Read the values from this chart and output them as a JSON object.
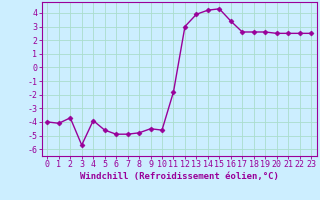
{
  "x": [
    0,
    1,
    2,
    3,
    4,
    5,
    6,
    7,
    8,
    9,
    10,
    11,
    12,
    13,
    14,
    15,
    16,
    17,
    18,
    19,
    20,
    21,
    22,
    23
  ],
  "y": [
    -4.0,
    -4.1,
    -3.7,
    -5.7,
    -3.9,
    -4.6,
    -4.9,
    -4.9,
    -4.8,
    -4.5,
    -4.6,
    -1.8,
    3.0,
    3.9,
    4.2,
    4.3,
    3.4,
    2.6,
    2.6,
    2.6,
    2.5,
    2.5,
    2.5,
    2.5
  ],
  "line_color": "#990099",
  "marker": "D",
  "markersize": 2.5,
  "linewidth": 1.0,
  "background_color": "#cceeff",
  "grid_color": "#aaddcc",
  "xlabel": "Windchill (Refroidissement éolien,°C)",
  "xlabel_fontsize": 6.5,
  "tick_color": "#990099",
  "tick_label_color": "#990099",
  "yticks": [
    -6,
    -5,
    -4,
    -3,
    -2,
    -1,
    0,
    1,
    2,
    3,
    4
  ],
  "xticks": [
    0,
    1,
    2,
    3,
    4,
    5,
    6,
    7,
    8,
    9,
    10,
    11,
    12,
    13,
    14,
    15,
    16,
    17,
    18,
    19,
    20,
    21,
    22,
    23
  ],
  "xlim": [
    -0.5,
    23.5
  ],
  "ylim": [
    -6.5,
    4.8
  ],
  "tick_fontsize": 6.0
}
